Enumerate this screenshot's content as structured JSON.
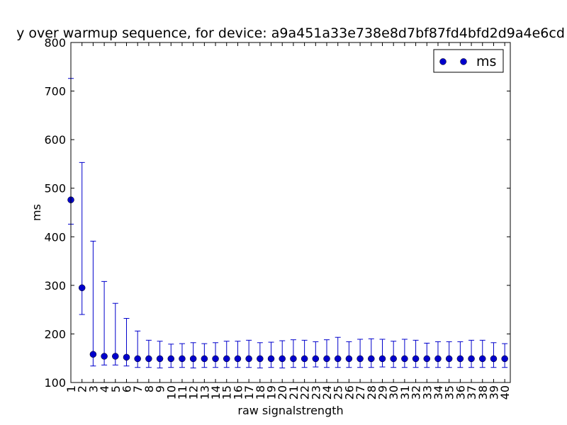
{
  "chart_data": {
    "type": "scatter",
    "title": "y over warmup sequence, for device: a9a451a33e738e8d7bf87fd4bfd2d9a4e6cd",
    "xlabel": "raw signalstrength",
    "ylabel": "ms",
    "ylim": [
      100,
      800
    ],
    "yticks": [
      100,
      200,
      300,
      400,
      500,
      600,
      700,
      800
    ],
    "categories": [
      "1",
      "2",
      "3",
      "4",
      "5",
      "6",
      "7",
      "8",
      "9",
      "10",
      "11",
      "12",
      "13",
      "14",
      "15",
      "16",
      "17",
      "18",
      "19",
      "20",
      "21",
      "22",
      "23",
      "24",
      "25",
      "26",
      "27",
      "28",
      "29",
      "30",
      "31",
      "32",
      "33",
      "34",
      "35",
      "36",
      "37",
      "38",
      "39",
      "40"
    ],
    "grid": false,
    "legend_position": "top-right",
    "series": [
      {
        "name": "ms",
        "color": "#0000cc",
        "marker": "circle",
        "values": [
          476,
          295,
          158,
          154,
          154,
          152,
          149,
          149,
          149,
          149,
          149,
          149,
          149,
          149,
          149,
          149,
          149,
          149,
          149,
          149,
          149,
          149,
          149,
          149,
          149,
          149,
          149,
          149,
          149,
          149,
          149,
          149,
          149,
          149,
          149,
          149,
          149,
          149,
          149,
          149
        ],
        "err_low": [
          426,
          240,
          134,
          136,
          136,
          134,
          131,
          131,
          130,
          131,
          131,
          130,
          131,
          131,
          131,
          131,
          131,
          130,
          131,
          130,
          131,
          131,
          132,
          131,
          131,
          131,
          131,
          131,
          132,
          131,
          131,
          131,
          131,
          131,
          131,
          131,
          131,
          131,
          131,
          131
        ],
        "err_high": [
          726,
          553,
          391,
          308,
          263,
          232,
          206,
          187,
          185,
          179,
          180,
          182,
          180,
          182,
          185,
          185,
          187,
          182,
          183,
          186,
          188,
          187,
          184,
          188,
          193,
          184,
          189,
          190,
          189,
          185,
          189,
          187,
          181,
          184,
          184,
          184,
          187,
          187,
          182,
          180
        ]
      }
    ]
  }
}
